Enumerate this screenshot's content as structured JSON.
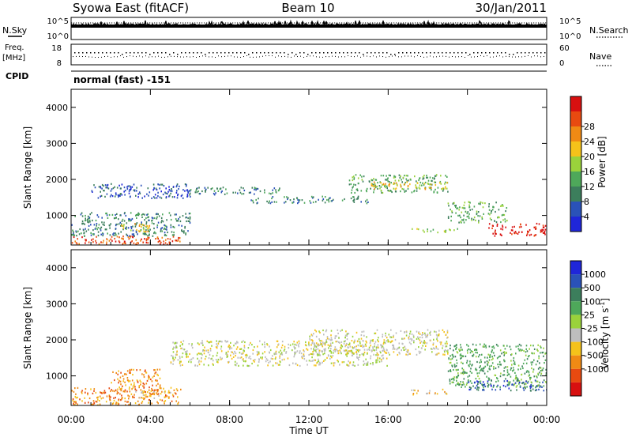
{
  "header": {
    "station": "Syowa East (fitACF)",
    "beam": "Beam 10",
    "date": "30/Jan/2011"
  },
  "status_panels": {
    "nsky_label": "N.Sky",
    "nsky_top": "10^5",
    "nsky_bottom": "10^0",
    "nsearch_label": "N.Search",
    "nsearch_top": "10^5",
    "nsearch_bottom": "10^0",
    "freq_label_1": "Freq.",
    "freq_label_2": "[MHz]",
    "freq_top": "18",
    "freq_bottom": "8",
    "nave_label": "Nave",
    "nave_top": "60",
    "nave_bottom": "0",
    "cpid_label": "CPID",
    "cpid_value": "normal (fast) -151"
  },
  "axes": {
    "ylabel": "Slant Range [km]",
    "xlabel": "Time UT",
    "y_ticks": [
      "1000",
      "2000",
      "3000",
      "4000"
    ],
    "x_ticks": [
      "00:00",
      "04:00",
      "08:00",
      "12:00",
      "16:00",
      "20:00",
      "00:00"
    ]
  },
  "power_scale": {
    "label": "Power [dB]",
    "ticks": [
      "4",
      "8",
      "12",
      "16",
      "20",
      "24",
      "28"
    ],
    "colors": [
      "#1f26d9",
      "#2a52b8",
      "#3c7e5c",
      "#4ea85a",
      "#9ad23b",
      "#f5c21a",
      "#f08a14",
      "#e84a10",
      "#d81010"
    ]
  },
  "velocity_scale": {
    "label": "Velocity [m s",
    "label_sup": "-1",
    "label_end": "]",
    "ticks": [
      "1000",
      "500",
      "100",
      "25",
      "-25",
      "-100",
      "-500",
      "-1000"
    ],
    "colors": [
      "#1f26d9",
      "#2a52b8",
      "#3c7e5c",
      "#4ea85a",
      "#9ad23b",
      "#bebebe",
      "#f5c21a",
      "#f08a14",
      "#e84a10",
      "#d81010"
    ]
  },
  "chart_data": [
    {
      "type": "heatmap",
      "name": "Power",
      "x_range_hours": [
        0,
        24
      ],
      "ylim": [
        180,
        4500
      ],
      "bands": [
        {
          "t0": 0.0,
          "t1": 5.5,
          "r0": 200,
          "r1": 450,
          "level": 7
        },
        {
          "t0": 0.0,
          "t1": 6.0,
          "r0": 450,
          "r1": 1100,
          "level": 2
        },
        {
          "t0": 2.5,
          "t1": 4.0,
          "r0": 550,
          "r1": 800,
          "level": 5
        },
        {
          "t0": 1.0,
          "t1": 6.0,
          "r0": 1500,
          "r1": 1900,
          "level": 1
        },
        {
          "t0": 6.0,
          "t1": 10.5,
          "r0": 1600,
          "r1": 1800,
          "level": 2
        },
        {
          "t0": 9.0,
          "t1": 15.0,
          "r0": 1350,
          "r1": 1550,
          "level": 2
        },
        {
          "t0": 14.0,
          "t1": 19.0,
          "r0": 1650,
          "r1": 2150,
          "level": 3
        },
        {
          "t0": 15.0,
          "t1": 19.0,
          "r0": 1750,
          "r1": 1950,
          "level": 5
        },
        {
          "t0": 19.0,
          "t1": 22.0,
          "r0": 800,
          "r1": 1400,
          "level": 3
        },
        {
          "t0": 21.0,
          "t1": 24.0,
          "r0": 450,
          "r1": 800,
          "level": 8
        },
        {
          "t0": 17.0,
          "t1": 19.5,
          "r0": 550,
          "r1": 650,
          "level": 4
        }
      ]
    },
    {
      "type": "heatmap",
      "name": "Velocity",
      "x_range_hours": [
        0,
        24
      ],
      "ylim": [
        180,
        4500
      ],
      "bands": [
        {
          "t0": 0.0,
          "t1": 5.5,
          "r0": 200,
          "r1": 700,
          "level": 7
        },
        {
          "t0": 2.0,
          "t1": 4.5,
          "r0": 600,
          "r1": 1200,
          "level": 7
        },
        {
          "t0": 3.0,
          "t1": 5.0,
          "r0": 400,
          "r1": 600,
          "level": 6
        },
        {
          "t0": 5.0,
          "t1": 16.0,
          "r0": 1300,
          "r1": 2000,
          "level": 5
        },
        {
          "t0": 12.0,
          "t1": 19.0,
          "r0": 1600,
          "r1": 2300,
          "level": 5
        },
        {
          "t0": 19.0,
          "t1": 24.0,
          "r0": 700,
          "r1": 1900,
          "level": 3
        },
        {
          "t0": 20.0,
          "t1": 24.0,
          "r0": 600,
          "r1": 900,
          "level": 1
        },
        {
          "t0": 17.0,
          "t1": 19.0,
          "r0": 500,
          "r1": 650,
          "level": 6
        }
      ]
    }
  ]
}
